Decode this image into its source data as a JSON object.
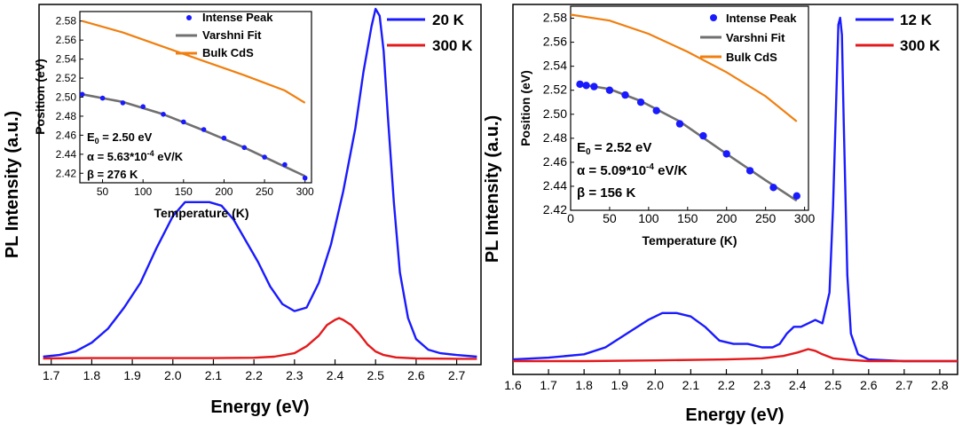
{
  "chart_data": [
    {
      "type": "line",
      "panel": "left",
      "xlabel": "Energy (eV)",
      "ylabel": "PL Intensity (a.u.)",
      "xlim": [
        1.67,
        2.76
      ],
      "xticks": [
        "1.7",
        "1.8",
        "1.9",
        "2.0",
        "2.1",
        "2.2",
        "2.3",
        "2.4",
        "2.5",
        "2.6",
        "2.7"
      ],
      "ylim": [
        0,
        1.0
      ],
      "colors": {
        "20K": "#1a1aff",
        "300K": "#e31a1c"
      },
      "series": [
        {
          "name": "20 K",
          "color": "#1a1aff",
          "x": [
            1.68,
            1.72,
            1.76,
            1.8,
            1.84,
            1.88,
            1.92,
            1.96,
            2.0,
            2.03,
            2.06,
            2.09,
            2.12,
            2.15,
            2.18,
            2.21,
            2.24,
            2.27,
            2.3,
            2.33,
            2.36,
            2.39,
            2.42,
            2.45,
            2.47,
            2.49,
            2.5,
            2.51,
            2.52,
            2.53,
            2.545,
            2.56,
            2.58,
            2.6,
            2.63,
            2.66,
            2.7,
            2.75
          ],
          "y": [
            0.01,
            0.015,
            0.025,
            0.05,
            0.09,
            0.15,
            0.22,
            0.32,
            0.41,
            0.45,
            0.45,
            0.45,
            0.44,
            0.4,
            0.34,
            0.28,
            0.21,
            0.16,
            0.14,
            0.15,
            0.22,
            0.33,
            0.48,
            0.66,
            0.82,
            0.95,
            1.0,
            0.98,
            0.88,
            0.7,
            0.45,
            0.25,
            0.12,
            0.06,
            0.03,
            0.02,
            0.015,
            0.01
          ]
        },
        {
          "name": "300 K",
          "color": "#e31a1c",
          "x": [
            1.68,
            1.8,
            1.9,
            2.0,
            2.1,
            2.2,
            2.25,
            2.3,
            2.33,
            2.36,
            2.38,
            2.4,
            2.41,
            2.42,
            2.44,
            2.46,
            2.48,
            2.5,
            2.52,
            2.55,
            2.6,
            2.7,
            2.75
          ],
          "y": [
            0.005,
            0.006,
            0.006,
            0.006,
            0.006,
            0.007,
            0.01,
            0.02,
            0.04,
            0.07,
            0.1,
            0.115,
            0.12,
            0.115,
            0.1,
            0.075,
            0.045,
            0.025,
            0.015,
            0.008,
            0.005,
            0.004,
            0.004
          ]
        }
      ],
      "legend": [
        "20 K",
        "300 K"
      ],
      "inset": {
        "xlabel": "Temperature (K)",
        "ylabel": "Position (eV)",
        "xlim": [
          22,
          308
        ],
        "ylim": [
          2.41,
          2.59
        ],
        "xticks": [
          "50",
          "100",
          "150",
          "200",
          "250",
          "300"
        ],
        "yticks": [
          "2.42",
          "2.44",
          "2.46",
          "2.48",
          "2.50",
          "2.52",
          "2.54",
          "2.56",
          "2.58"
        ],
        "legend": [
          "Intense Peak",
          "Varshni Fit",
          "Bulk CdS"
        ],
        "points": {
          "name": "Intense Peak",
          "color": "#1a1aff",
          "x": [
            25,
            50,
            75,
            100,
            125,
            150,
            175,
            200,
            225,
            250,
            275,
            300
          ],
          "y": [
            2.503,
            2.499,
            2.494,
            2.49,
            2.482,
            2.474,
            2.466,
            2.457,
            2.447,
            2.437,
            2.429,
            2.415
          ]
        },
        "fit": {
          "name": "Varshni Fit",
          "color": "#707070",
          "x": [
            25,
            75,
            125,
            175,
            225,
            275,
            300
          ],
          "y": [
            2.503,
            2.495,
            2.482,
            2.465,
            2.447,
            2.427,
            2.417
          ]
        },
        "bulk": {
          "name": "Bulk CdS",
          "color": "#f07f0f",
          "x": [
            25,
            75,
            125,
            175,
            225,
            275,
            300
          ],
          "y": [
            2.58,
            2.568,
            2.553,
            2.538,
            2.523,
            2.507,
            2.494
          ]
        },
        "params": [
          "E",
          "0",
          " = 2.50 eV",
          "α = 5.63*10",
          "-4",
          " eV/K",
          "β = 276 K"
        ]
      }
    },
    {
      "type": "line",
      "panel": "right",
      "xlabel": "Energy (eV)",
      "ylabel": "PL Intensity (a.u.)",
      "xlim": [
        1.6,
        2.85
      ],
      "xticks": [
        "1.6",
        "1.7",
        "1.8",
        "1.9",
        "2.0",
        "2.1",
        "2.2",
        "2.3",
        "2.4",
        "2.5",
        "2.6",
        "2.7",
        "2.8"
      ],
      "ylim": [
        0,
        1.0
      ],
      "series": [
        {
          "name": "12 K",
          "color": "#1a1aff",
          "x": [
            1.6,
            1.7,
            1.8,
            1.86,
            1.92,
            1.98,
            2.02,
            2.06,
            2.1,
            2.14,
            2.18,
            2.22,
            2.26,
            2.3,
            2.33,
            2.35,
            2.37,
            2.39,
            2.41,
            2.43,
            2.45,
            2.47,
            2.49,
            2.5,
            2.51,
            2.515,
            2.52,
            2.525,
            2.53,
            2.54,
            2.55,
            2.57,
            2.6,
            2.7,
            2.85
          ],
          "y": [
            0.005,
            0.01,
            0.02,
            0.04,
            0.08,
            0.12,
            0.14,
            0.14,
            0.13,
            0.1,
            0.06,
            0.05,
            0.05,
            0.04,
            0.04,
            0.05,
            0.08,
            0.1,
            0.1,
            0.11,
            0.12,
            0.11,
            0.2,
            0.45,
            0.8,
            0.98,
            1.0,
            0.95,
            0.7,
            0.25,
            0.08,
            0.02,
            0.005,
            0.0,
            0.0
          ]
        },
        {
          "name": "300 K",
          "color": "#e31a1c",
          "x": [
            1.6,
            1.8,
            2.0,
            2.2,
            2.3,
            2.36,
            2.4,
            2.43,
            2.45,
            2.47,
            2.5,
            2.55,
            2.6,
            2.85
          ],
          "y": [
            0.0,
            0.0,
            0.002,
            0.005,
            0.008,
            0.015,
            0.025,
            0.035,
            0.03,
            0.02,
            0.008,
            0.003,
            0.0,
            0.0
          ]
        }
      ],
      "legend": [
        "12 K",
        "300 K"
      ],
      "inset": {
        "xlabel": "Temperature (K)",
        "ylabel": "Position (eV)",
        "xlim": [
          0,
          305
        ],
        "ylim": [
          2.42,
          2.59
        ],
        "xticks": [
          "0",
          "50",
          "100",
          "150",
          "200",
          "250",
          "300"
        ],
        "yticks": [
          "2.42",
          "2.44",
          "2.46",
          "2.48",
          "2.50",
          "2.52",
          "2.54",
          "2.56",
          "2.58"
        ],
        "legend": [
          "Intense Peak",
          "Varshni Fit",
          "Bulk CdS"
        ],
        "points": {
          "name": "Intense Peak",
          "color": "#1a1aff",
          "x": [
            12,
            20,
            30,
            50,
            70,
            90,
            110,
            140,
            170,
            200,
            230,
            260,
            290
          ],
          "y": [
            2.525,
            2.524,
            2.523,
            2.52,
            2.516,
            2.51,
            2.503,
            2.492,
            2.482,
            2.467,
            2.453,
            2.439,
            2.432
          ]
        },
        "fit": {
          "name": "Varshni Fit",
          "color": "#707070",
          "x": [
            12,
            50,
            90,
            140,
            200,
            250,
            290
          ],
          "y": [
            2.525,
            2.521,
            2.511,
            2.494,
            2.467,
            2.445,
            2.428
          ]
        },
        "bulk": {
          "name": "Bulk CdS",
          "color": "#f07f0f",
          "x": [
            0,
            50,
            100,
            150,
            200,
            250,
            290
          ],
          "y": [
            2.583,
            2.578,
            2.567,
            2.552,
            2.535,
            2.515,
            2.494
          ]
        },
        "params": [
          "E",
          "0",
          " = 2.52 eV",
          "α = 5.09*10",
          "-4",
          " eV/K",
          "β = 156 K"
        ]
      }
    }
  ]
}
